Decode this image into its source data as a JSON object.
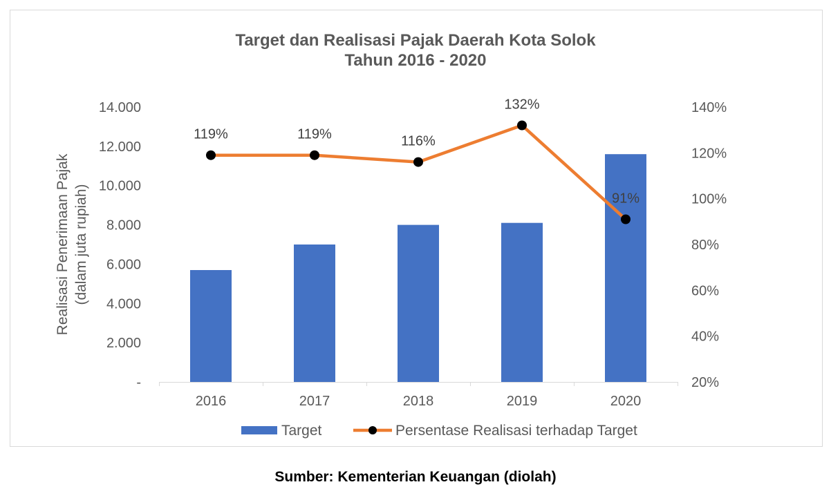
{
  "chart_data": {
    "type": "bar",
    "title_lines": [
      "Target dan Realisasi Pajak Daerah Kota Solok",
      "Tahun 2016 - 2020"
    ],
    "categories": [
      "2016",
      "2017",
      "2018",
      "2019",
      "2020"
    ],
    "series": [
      {
        "name": "Target",
        "type": "bar",
        "axis": "left",
        "values": [
          5700,
          7000,
          8000,
          8100,
          11600
        ],
        "color": "#4472C4"
      },
      {
        "name": "Persentase Realisasi terhadap Target",
        "type": "line",
        "axis": "right",
        "values": [
          119,
          119,
          116,
          132,
          91
        ],
        "data_labels": [
          "119%",
          "119%",
          "116%",
          "132%",
          "91%"
        ],
        "color": "#ED7D31",
        "marker_color": "#000000"
      }
    ],
    "ylabel_lines": [
      "Realisasi Penerimaan Pajak",
      "(dalam juta rupiah)"
    ],
    "ylim": [
      0,
      14000
    ],
    "y_tick_values": [
      0,
      2000,
      4000,
      6000,
      8000,
      10000,
      12000,
      14000
    ],
    "y_ticks": [
      "-",
      "2.000",
      "4.000",
      "6.000",
      "8.000",
      "10.000",
      "12.000",
      "14.000"
    ],
    "y2lim": [
      20,
      140
    ],
    "y2_tick_values": [
      20,
      40,
      60,
      80,
      100,
      120,
      140
    ],
    "y2_ticks": [
      "20%",
      "40%",
      "60%",
      "80%",
      "100%",
      "120%",
      "140%"
    ],
    "grid": false,
    "legend_position": "bottom"
  },
  "source": "Sumber: Kementerian Keuangan (diolah)"
}
